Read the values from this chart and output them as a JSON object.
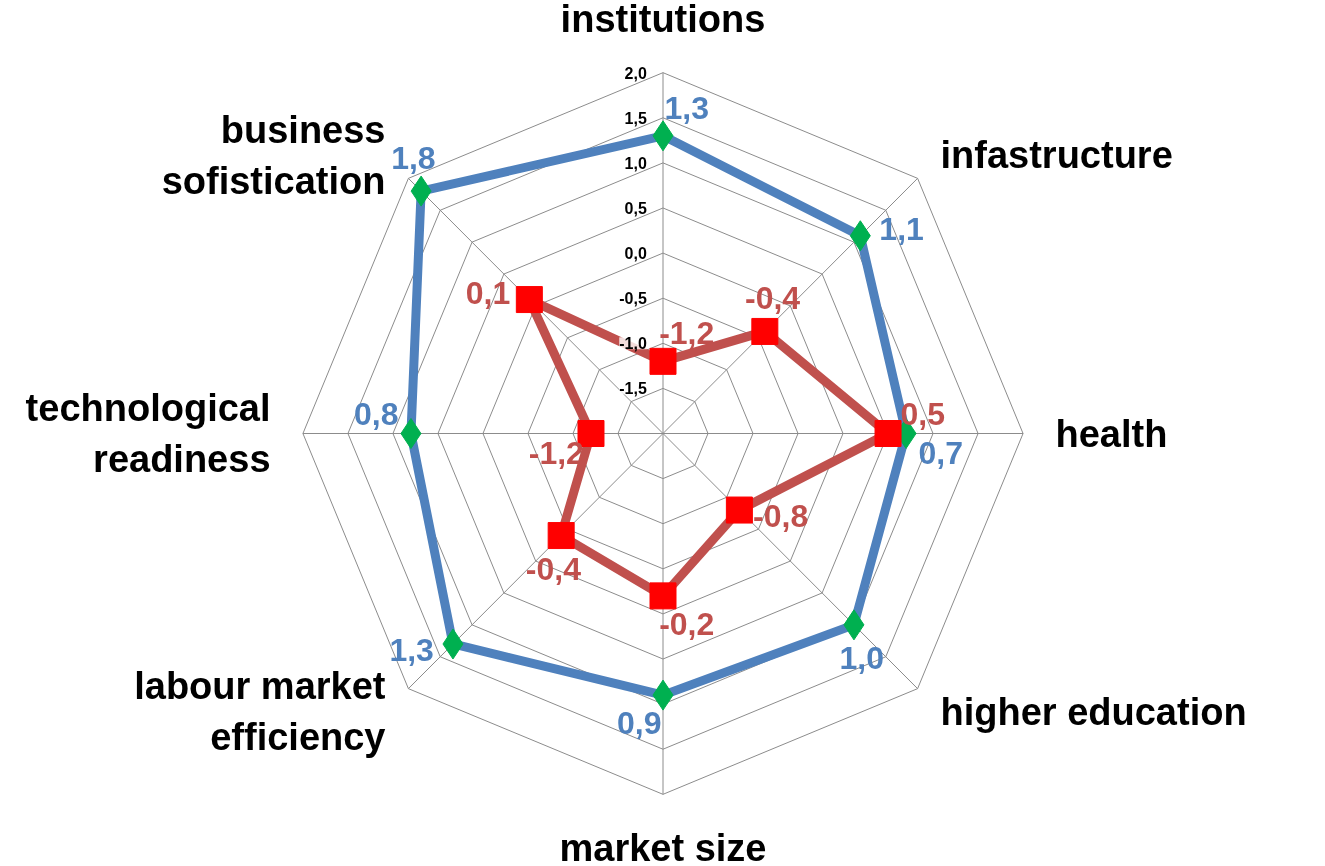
{
  "chart_data": {
    "type": "radar",
    "categories": [
      "institutions",
      "infastructure",
      "health",
      "higher education",
      "market size",
      "labour market efficiency",
      "technological readiness",
      "business sofistication"
    ],
    "ylim": [
      -2.0,
      2.0
    ],
    "yticks": [
      {
        "value": -1.5,
        "label": "-1,5"
      },
      {
        "value": -1.0,
        "label": "-1,0"
      },
      {
        "value": -0.5,
        "label": "-0,5"
      },
      {
        "value": 0.0,
        "label": "0,0"
      },
      {
        "value": 0.5,
        "label": "0,5"
      },
      {
        "value": 1.0,
        "label": "1,0"
      },
      {
        "value": 1.5,
        "label": "1,5"
      },
      {
        "value": 2.0,
        "label": "2,0"
      }
    ],
    "grid": true,
    "series": [
      {
        "color": "#4f81bd",
        "marker": "diamond",
        "colors": [
          "#00b050",
          "#00b050",
          "#00b050",
          "#00b050",
          "#00b050",
          "#00b050",
          "#00b050",
          "#00b050"
        ],
        "values": [
          1.3,
          1.1,
          0.7,
          1.0,
          0.9,
          1.3,
          0.8,
          1.8
        ],
        "value_labels": [
          "1,3",
          "1,1",
          "0,7",
          "1,0",
          "0,9",
          "1,3",
          "0,8",
          "1,8"
        ]
      },
      {
        "color": "#c0504d",
        "marker": "square",
        "colors": [
          "#ff0000",
          "#ff0000",
          "#ff0000",
          "#ff0000",
          "#ff0000",
          "#ff0000",
          "#ff0000",
          "#ff0000"
        ],
        "values": [
          -1.2,
          -0.4,
          0.5,
          -0.8,
          -0.2,
          -0.4,
          -1.2,
          0.1
        ],
        "value_labels": [
          "-1,2",
          "-0,4",
          "0,5",
          "-0,8",
          "-0,2",
          "-0,4",
          "-1,2",
          "0,1"
        ]
      }
    ]
  }
}
